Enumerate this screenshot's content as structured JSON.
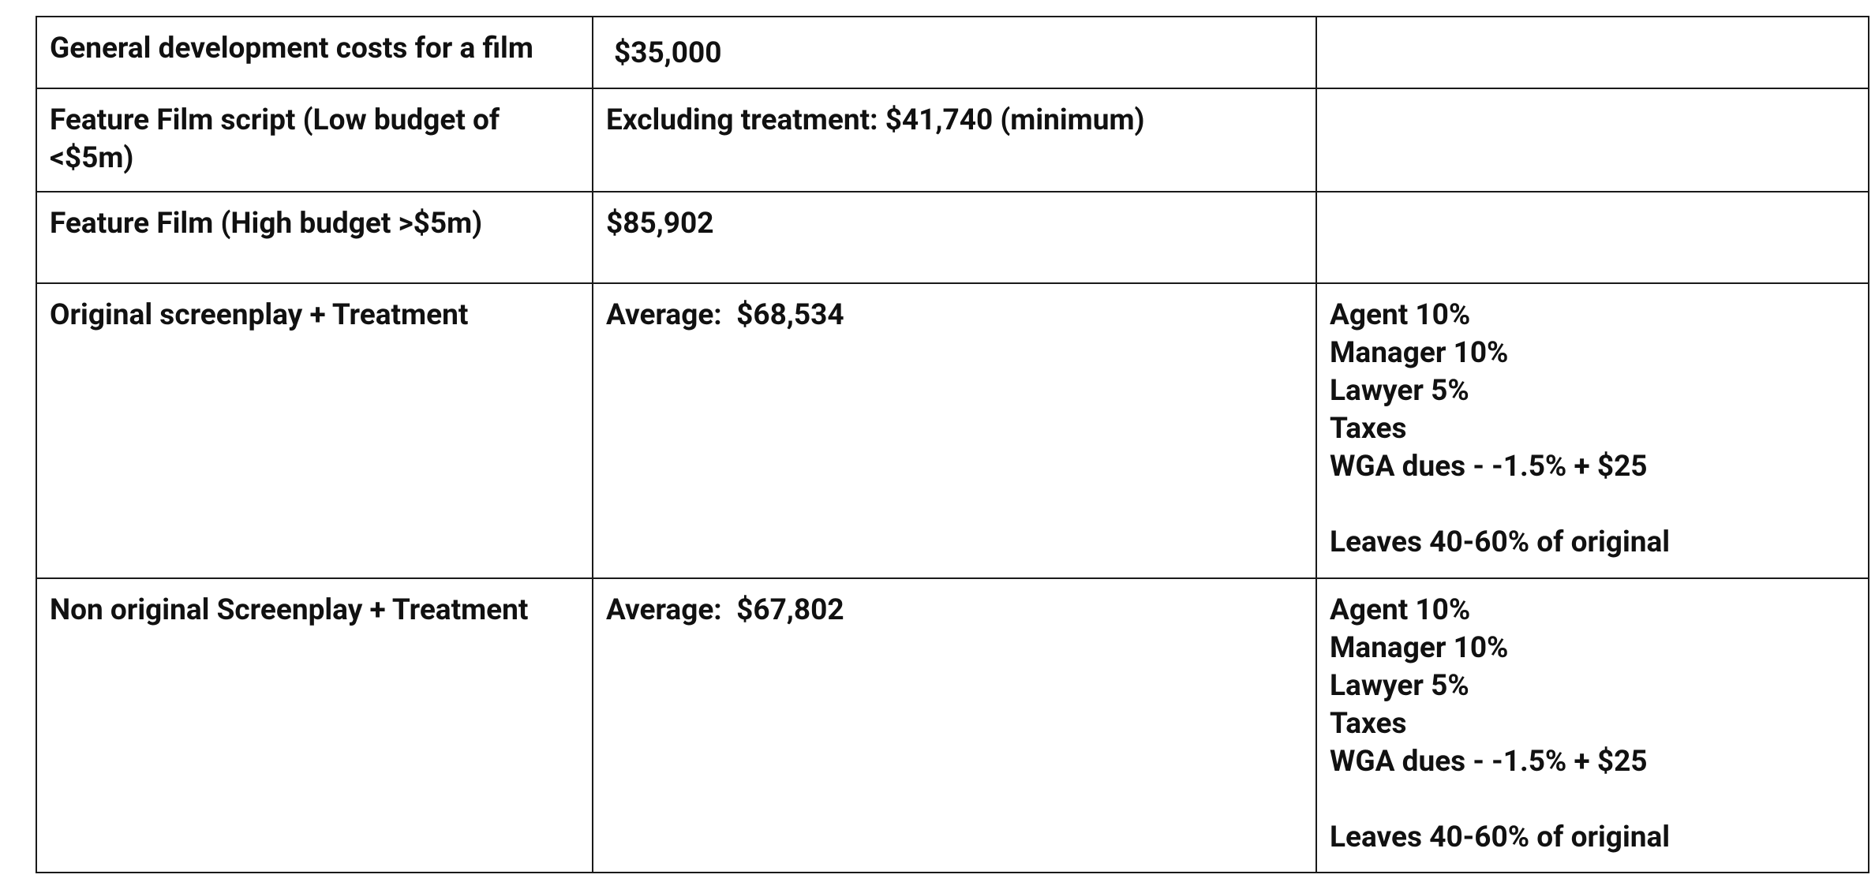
{
  "table": {
    "rows": [
      [
        "General development costs for a film",
        "$35,000"
      ],
      [
        "Feature Film script (Low budget of <$5m)",
        "Excluding treatment: $41,740 (minimum)"
      ],
      [
        "Feature Film (High budget >$5m)",
        "$85,902"
      ],
      [
        "Original screenplay + Treatment",
        "Average:  $68,534",
        {
          "lines": [
            "Agent 10%",
            "Manager 10%",
            "Lawyer 5%",
            "Taxes",
            "WGA dues - -1.5% + $25"
          ],
          "note": "Leaves 40-60% of original"
        }
      ],
      [
        "Non original Screenplay + Treatment",
        "Average:  $67,802",
        {
          "lines": [
            "Agent 10%",
            "Manager 10%",
            "Lawyer 5%",
            "Taxes",
            "WGA dues - -1.5% + $25"
          ],
          "note": "Leaves 40-60% of original"
        }
      ]
    ]
  }
}
